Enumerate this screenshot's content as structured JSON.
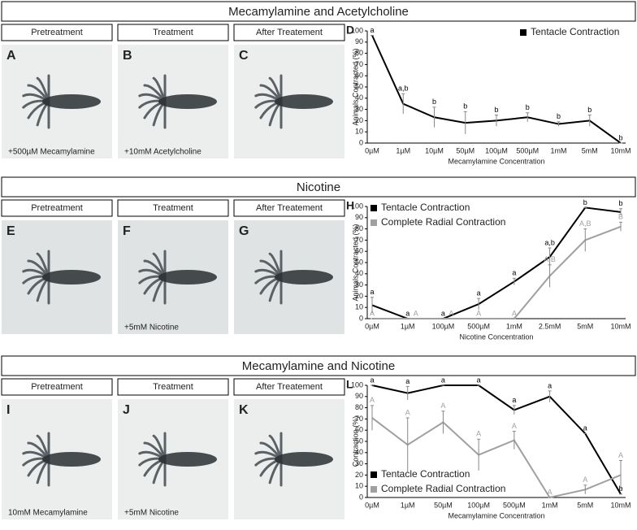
{
  "sections": [
    {
      "title": "Mecamylamine and Acetylcholine",
      "photos": [
        {
          "header": "Pretreatment",
          "letter": "A",
          "caption": "+500µM Mecamylamine"
        },
        {
          "header": "Treatment",
          "letter": "B",
          "caption": "+10mM Acetylcholine"
        },
        {
          "header": "After Treatement",
          "letter": "C"
        }
      ]
    },
    {
      "title": "Nicotine",
      "photos": [
        {
          "header": "Pretreatment",
          "letter": "E"
        },
        {
          "header": "Treatment",
          "letter": "F",
          "caption": "+5mM Nicotine"
        },
        {
          "header": "After Treatement",
          "letter": "G"
        }
      ]
    },
    {
      "title": "Mecamylamine and Nicotine",
      "photos": [
        {
          "header": "Pretreatment",
          "letter": "I",
          "caption": "10mM Mecamylamine"
        },
        {
          "header": "Treatment",
          "letter": "J",
          "caption": "+5mM Nicotine"
        },
        {
          "header": "After Treatement",
          "letter": "K"
        }
      ]
    }
  ],
  "chart_data": [
    {
      "type": "line",
      "panel": "D",
      "x_label": "Mecamylamine Concentration",
      "y_label": "Animals Contracted (%)",
      "categories": [
        "0µM",
        "1µM",
        "10µM",
        "50µM",
        "100µM",
        "500µM",
        "1mM",
        "5mM",
        "10mM"
      ],
      "ylim": [
        0,
        100
      ],
      "yticks": [
        0,
        10,
        20,
        30,
        40,
        50,
        60,
        70,
        80,
        90,
        100
      ],
      "legend": "upper right",
      "series": [
        {
          "name": "Tentacle Contraction",
          "color": "#000000",
          "values": [
            96,
            35,
            23,
            18,
            20,
            23,
            17,
            20,
            0
          ],
          "errors": [
            0,
            9,
            9,
            10,
            5,
            4,
            2,
            5,
            0
          ],
          "letters": [
            "a",
            "a,b",
            "b",
            "b",
            "b",
            "b",
            "b",
            "b",
            "b"
          ]
        }
      ]
    },
    {
      "type": "line",
      "panel": "H",
      "x_label": "Nicotine Concentration",
      "y_label": "Animals Contracted (%)",
      "categories": [
        "0µM",
        "1µM",
        "100µM",
        "500µM",
        "1mM",
        "2.5mM",
        "5mM",
        "10mM"
      ],
      "ylim": [
        0,
        100
      ],
      "yticks": [
        0,
        10,
        20,
        30,
        40,
        50,
        60,
        70,
        80,
        90,
        100
      ],
      "legend": "upper left",
      "series": [
        {
          "name": "Tentacle Contraction",
          "color": "#000000",
          "values": [
            12,
            0,
            0,
            13,
            33,
            55,
            99,
            95
          ],
          "errors": [
            7,
            0,
            0,
            5,
            3,
            8,
            0,
            3
          ],
          "letters": [
            "a",
            "a",
            "a",
            "a",
            "a",
            "a,b",
            "b",
            "b"
          ]
        },
        {
          "name": "Complete Radial Contraction",
          "color": "#a0a0a0",
          "values": [
            0,
            0,
            0,
            0,
            0,
            38,
            70,
            82
          ],
          "errors": [
            0,
            0,
            0,
            0,
            0,
            10,
            10,
            4
          ],
          "letters": [
            "A",
            "A",
            "A",
            "A",
            "A",
            "A,B",
            "A,B",
            "B"
          ]
        }
      ]
    },
    {
      "type": "line",
      "panel": "L",
      "x_label": "Mecamylamine Concentration",
      "y_label": "Contraction (%)",
      "categories": [
        "0µM",
        "1µM",
        "50µM",
        "100µM",
        "500µM",
        "1mM",
        "5mM",
        "10mM"
      ],
      "ylim": [
        0,
        100
      ],
      "yticks": [
        0,
        10,
        20,
        30,
        40,
        50,
        60,
        70,
        80,
        90,
        100
      ],
      "legend": "lower left",
      "series": [
        {
          "name": "Tentacle Contraction",
          "color": "#000000",
          "values": [
            100,
            93,
            100,
            100,
            78,
            90,
            57,
            3
          ],
          "errors": [
            0,
            6,
            0,
            0,
            4,
            5,
            0,
            0
          ],
          "letters": [
            "a",
            "a",
            "a",
            "a",
            "a",
            "a",
            "a",
            "b"
          ]
        },
        {
          "name": "Complete Radial Contraction",
          "color": "#a0a0a0",
          "values": [
            71,
            47,
            67,
            38,
            51,
            0,
            7,
            20
          ],
          "errors": [
            11,
            24,
            10,
            14,
            8,
            0,
            4,
            13
          ],
          "letters": [
            "A",
            "A",
            "A",
            "A",
            "A",
            "A",
            "A",
            "A"
          ]
        }
      ]
    }
  ]
}
